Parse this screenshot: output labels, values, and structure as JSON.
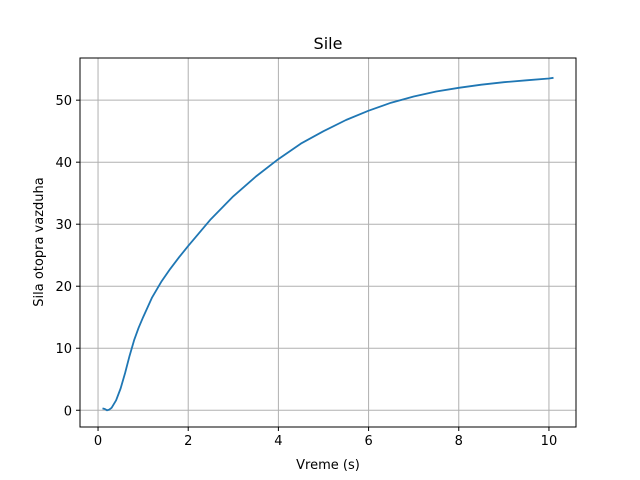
{
  "chart_data": {
    "type": "line",
    "title": "Sile",
    "xlabel": "Vreme (s)",
    "ylabel": "Sila otopra vazduha",
    "xlim": [
      -0.4,
      10.6
    ],
    "ylim": [
      -2.7,
      56.8
    ],
    "xticks": [
      0,
      2,
      4,
      6,
      8,
      10
    ],
    "yticks": [
      0,
      10,
      20,
      30,
      40,
      50
    ],
    "grid": true,
    "series": [
      {
        "color": "#1f77b4",
        "x": [
          0.1,
          0.15,
          0.2,
          0.25,
          0.3,
          0.4,
          0.5,
          0.6,
          0.7,
          0.8,
          0.9,
          1.0,
          1.2,
          1.4,
          1.6,
          1.8,
          2.0,
          2.5,
          3.0,
          3.5,
          4.0,
          4.5,
          5.0,
          5.5,
          6.0,
          6.5,
          7.0,
          7.5,
          8.0,
          8.5,
          9.0,
          9.5,
          10.0,
          10.1
        ],
        "y": [
          0.3,
          0.2,
          0.0,
          0.1,
          0.4,
          1.6,
          3.5,
          6.0,
          8.8,
          11.3,
          13.3,
          15.0,
          18.2,
          20.7,
          22.8,
          24.7,
          26.5,
          30.8,
          34.5,
          37.7,
          40.5,
          43.0,
          45.0,
          46.8,
          48.3,
          49.6,
          50.6,
          51.4,
          52.0,
          52.5,
          52.9,
          53.2,
          53.5,
          53.6
        ]
      }
    ]
  }
}
